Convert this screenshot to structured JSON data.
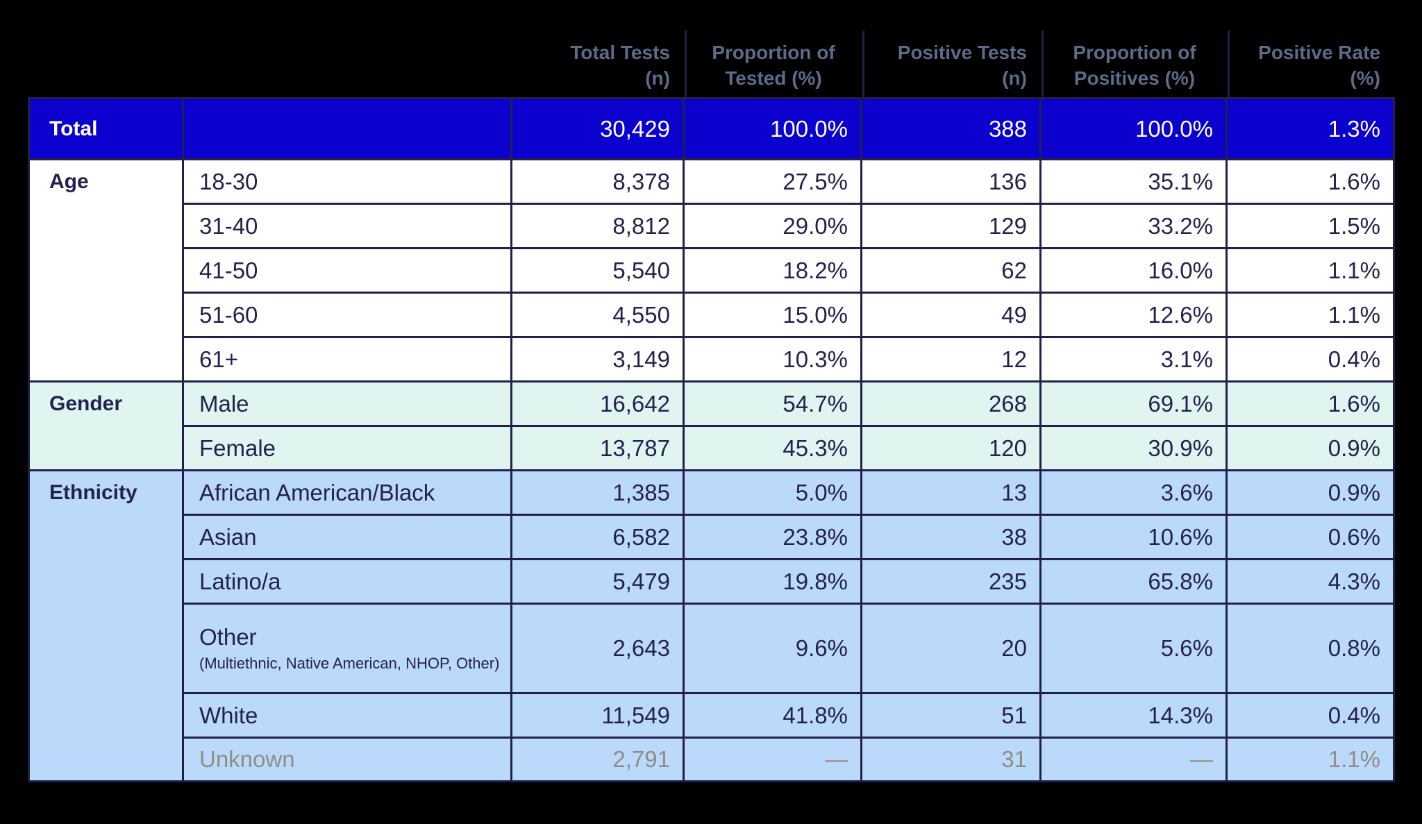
{
  "chart_data": {
    "type": "table",
    "columns": [
      "",
      "",
      "Total Tests (n)",
      "Proportion of Tested (%)",
      "Positive Tests (n)",
      "Proportion of Positives (%)",
      "Positive Rate (%)"
    ],
    "rows": [
      [
        "Total",
        "",
        "30,429",
        "100.0%",
        "388",
        "100.0%",
        "1.3%"
      ],
      [
        "Age",
        "18-30",
        "8,378",
        "27.5%",
        "136",
        "35.1%",
        "1.6%"
      ],
      [
        "",
        "31-40",
        "8,812",
        "29.0%",
        "129",
        "33.2%",
        "1.5%"
      ],
      [
        "",
        "41-50",
        "5,540",
        "18.2%",
        "62",
        "16.0%",
        "1.1%"
      ],
      [
        "",
        "51-60",
        "4,550",
        "15.0%",
        "49",
        "12.6%",
        "1.1%"
      ],
      [
        "",
        "61+",
        "3,149",
        "10.3%",
        "12",
        "3.1%",
        "0.4%"
      ],
      [
        "Gender",
        "Male",
        "16,642",
        "54.7%",
        "268",
        "69.1%",
        "1.6%"
      ],
      [
        "",
        "Female",
        "13,787",
        "45.3%",
        "120",
        "30.9%",
        "0.9%"
      ],
      [
        "Ethnicity",
        "African American/Black",
        "1,385",
        "5.0%",
        "13",
        "3.6%",
        "0.9%"
      ],
      [
        "",
        "Asian",
        "6,582",
        "23.8%",
        "38",
        "10.6%",
        "0.6%"
      ],
      [
        "",
        "Latino/a",
        "5,479",
        "19.8%",
        "235",
        "65.8%",
        "4.3%"
      ],
      [
        "",
        "Other (Multiethnic, Native American, NHOP, Other)",
        "2,643",
        "9.6%",
        "20",
        "5.6%",
        "0.8%"
      ],
      [
        "",
        "White",
        "11,549",
        "41.8%",
        "51",
        "14.3%",
        "0.4%"
      ],
      [
        "",
        "Unknown",
        "2,791",
        "—",
        "31",
        "—",
        "1.1%"
      ]
    ]
  },
  "colors": {
    "background": "#000000",
    "total_row": "#0b00ce",
    "gender_section": "#e0f5f0",
    "ethnicity_section": "#bbd9fa",
    "grid_line": "#21204a",
    "body_text": "#23224f",
    "header_text": "#5d6b8b",
    "muted_text": "#8f8e86"
  },
  "header": {
    "columns": [
      {
        "line1": "Total Tests",
        "line2": "(n)",
        "align": "right"
      },
      {
        "line1": "Proportion of",
        "line2": "Tested (%)",
        "align": "center"
      },
      {
        "line1": "Positive Tests",
        "line2": "(n)",
        "align": "right"
      },
      {
        "line1": "Proportion of",
        "line2": "Positives (%)",
        "align": "center"
      },
      {
        "line1": "Positive Rate",
        "line2": "(%)",
        "align": "right"
      }
    ]
  },
  "total_row": {
    "category": "Total",
    "values": [
      "30,429",
      "100.0%",
      "388",
      "100.0%",
      "1.3%"
    ]
  },
  "sections": [
    {
      "category": "Age",
      "theme": "white",
      "rows": [
        {
          "label": "18-30",
          "values": [
            "8,378",
            "27.5%",
            "136",
            "35.1%",
            "1.6%"
          ]
        },
        {
          "label": "31-40",
          "values": [
            "8,812",
            "29.0%",
            "129",
            "33.2%",
            "1.5%"
          ]
        },
        {
          "label": "41-50",
          "values": [
            "5,540",
            "18.2%",
            "62",
            "16.0%",
            "1.1%"
          ]
        },
        {
          "label": "51-60",
          "values": [
            "4,550",
            "15.0%",
            "49",
            "12.6%",
            "1.1%"
          ]
        },
        {
          "label": "61+",
          "values": [
            "3,149",
            "10.3%",
            "12",
            "3.1%",
            "0.4%"
          ]
        }
      ]
    },
    {
      "category": "Gender",
      "theme": "mint",
      "rows": [
        {
          "label": "Male",
          "values": [
            "16,642",
            "54.7%",
            "268",
            "69.1%",
            "1.6%"
          ]
        },
        {
          "label": "Female",
          "values": [
            "13,787",
            "45.3%",
            "120",
            "30.9%",
            "0.9%"
          ]
        }
      ]
    },
    {
      "category": "Ethnicity",
      "theme": "blue",
      "rows": [
        {
          "label": "African American/Black",
          "values": [
            "1,385",
            "5.0%",
            "13",
            "3.6%",
            "0.9%"
          ]
        },
        {
          "label": "Asian",
          "values": [
            "6,582",
            "23.8%",
            "38",
            "10.6%",
            "0.6%"
          ]
        },
        {
          "label": "Latino/a",
          "values": [
            "5,479",
            "19.8%",
            "235",
            "65.8%",
            "4.3%"
          ]
        },
        {
          "label": "Other",
          "sublabel": "(Multiethnic, Native American, NHOP, Other)",
          "values": [
            "2,643",
            "9.6%",
            "20",
            "5.6%",
            "0.8%"
          ]
        },
        {
          "label": "White",
          "values": [
            "11,549",
            "41.8%",
            "51",
            "14.3%",
            "0.4%"
          ]
        },
        {
          "label": "Unknown",
          "muted": true,
          "values": [
            "2,791",
            "—",
            "31",
            "—",
            "1.1%"
          ]
        }
      ]
    }
  ]
}
